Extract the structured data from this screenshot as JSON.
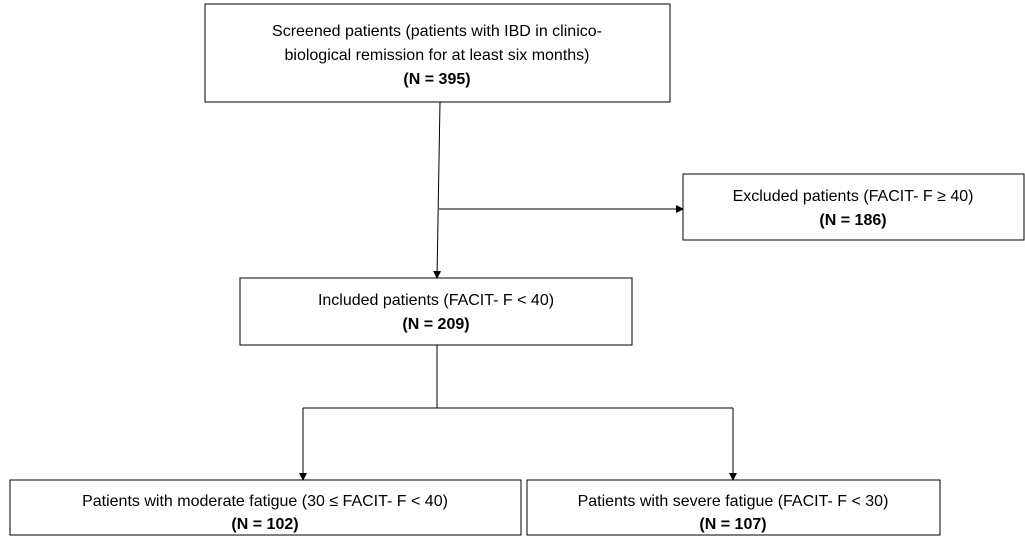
{
  "nodes": [
    {
      "lines": [
        "Screened patients (patients with IBD in clinico-",
        "biological remission for at least six months)"
      ],
      "count": "(N = 395)"
    },
    {
      "lines": [
        "Excluded patients (FACIT- F ≥ 40)"
      ],
      "count": "(N = 186)"
    },
    {
      "lines": [
        "Included patients (FACIT- F < 40)"
      ],
      "count": "(N = 209)"
    },
    {
      "lines": [
        "Patients with moderate fatigue (30 ≤ FACIT- F < 40)"
      ],
      "count": "(N = 102)"
    },
    {
      "lines": [
        "Patients with severe fatigue (FACIT-  F < 30)"
      ],
      "count": "(N = 107)"
    }
  ]
}
